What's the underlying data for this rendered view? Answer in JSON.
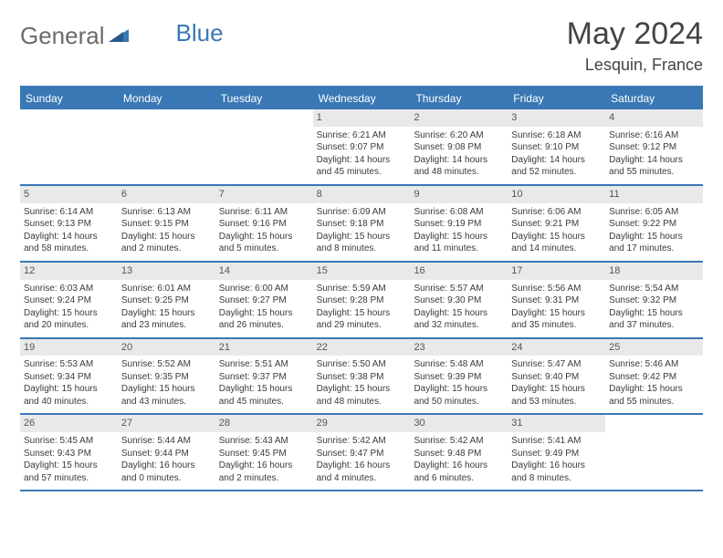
{
  "brand": {
    "part1": "General",
    "part2": "Blue"
  },
  "title": "May 2024",
  "location": "Lesquin, France",
  "colors": {
    "accent": "#3a78b5",
    "header_text": "#ffffff",
    "daynum_bg": "#e9e9e9",
    "text": "#333333",
    "brand_gray": "#6b6b6b"
  },
  "dow": [
    "Sunday",
    "Monday",
    "Tuesday",
    "Wednesday",
    "Thursday",
    "Friday",
    "Saturday"
  ],
  "weeks": [
    [
      null,
      null,
      null,
      {
        "n": "1",
        "sr": "Sunrise: 6:21 AM",
        "ss": "Sunset: 9:07 PM",
        "d1": "Daylight: 14 hours",
        "d2": "and 45 minutes."
      },
      {
        "n": "2",
        "sr": "Sunrise: 6:20 AM",
        "ss": "Sunset: 9:08 PM",
        "d1": "Daylight: 14 hours",
        "d2": "and 48 minutes."
      },
      {
        "n": "3",
        "sr": "Sunrise: 6:18 AM",
        "ss": "Sunset: 9:10 PM",
        "d1": "Daylight: 14 hours",
        "d2": "and 52 minutes."
      },
      {
        "n": "4",
        "sr": "Sunrise: 6:16 AM",
        "ss": "Sunset: 9:12 PM",
        "d1": "Daylight: 14 hours",
        "d2": "and 55 minutes."
      }
    ],
    [
      {
        "n": "5",
        "sr": "Sunrise: 6:14 AM",
        "ss": "Sunset: 9:13 PM",
        "d1": "Daylight: 14 hours",
        "d2": "and 58 minutes."
      },
      {
        "n": "6",
        "sr": "Sunrise: 6:13 AM",
        "ss": "Sunset: 9:15 PM",
        "d1": "Daylight: 15 hours",
        "d2": "and 2 minutes."
      },
      {
        "n": "7",
        "sr": "Sunrise: 6:11 AM",
        "ss": "Sunset: 9:16 PM",
        "d1": "Daylight: 15 hours",
        "d2": "and 5 minutes."
      },
      {
        "n": "8",
        "sr": "Sunrise: 6:09 AM",
        "ss": "Sunset: 9:18 PM",
        "d1": "Daylight: 15 hours",
        "d2": "and 8 minutes."
      },
      {
        "n": "9",
        "sr": "Sunrise: 6:08 AM",
        "ss": "Sunset: 9:19 PM",
        "d1": "Daylight: 15 hours",
        "d2": "and 11 minutes."
      },
      {
        "n": "10",
        "sr": "Sunrise: 6:06 AM",
        "ss": "Sunset: 9:21 PM",
        "d1": "Daylight: 15 hours",
        "d2": "and 14 minutes."
      },
      {
        "n": "11",
        "sr": "Sunrise: 6:05 AM",
        "ss": "Sunset: 9:22 PM",
        "d1": "Daylight: 15 hours",
        "d2": "and 17 minutes."
      }
    ],
    [
      {
        "n": "12",
        "sr": "Sunrise: 6:03 AM",
        "ss": "Sunset: 9:24 PM",
        "d1": "Daylight: 15 hours",
        "d2": "and 20 minutes."
      },
      {
        "n": "13",
        "sr": "Sunrise: 6:01 AM",
        "ss": "Sunset: 9:25 PM",
        "d1": "Daylight: 15 hours",
        "d2": "and 23 minutes."
      },
      {
        "n": "14",
        "sr": "Sunrise: 6:00 AM",
        "ss": "Sunset: 9:27 PM",
        "d1": "Daylight: 15 hours",
        "d2": "and 26 minutes."
      },
      {
        "n": "15",
        "sr": "Sunrise: 5:59 AM",
        "ss": "Sunset: 9:28 PM",
        "d1": "Daylight: 15 hours",
        "d2": "and 29 minutes."
      },
      {
        "n": "16",
        "sr": "Sunrise: 5:57 AM",
        "ss": "Sunset: 9:30 PM",
        "d1": "Daylight: 15 hours",
        "d2": "and 32 minutes."
      },
      {
        "n": "17",
        "sr": "Sunrise: 5:56 AM",
        "ss": "Sunset: 9:31 PM",
        "d1": "Daylight: 15 hours",
        "d2": "and 35 minutes."
      },
      {
        "n": "18",
        "sr": "Sunrise: 5:54 AM",
        "ss": "Sunset: 9:32 PM",
        "d1": "Daylight: 15 hours",
        "d2": "and 37 minutes."
      }
    ],
    [
      {
        "n": "19",
        "sr": "Sunrise: 5:53 AM",
        "ss": "Sunset: 9:34 PM",
        "d1": "Daylight: 15 hours",
        "d2": "and 40 minutes."
      },
      {
        "n": "20",
        "sr": "Sunrise: 5:52 AM",
        "ss": "Sunset: 9:35 PM",
        "d1": "Daylight: 15 hours",
        "d2": "and 43 minutes."
      },
      {
        "n": "21",
        "sr": "Sunrise: 5:51 AM",
        "ss": "Sunset: 9:37 PM",
        "d1": "Daylight: 15 hours",
        "d2": "and 45 minutes."
      },
      {
        "n": "22",
        "sr": "Sunrise: 5:50 AM",
        "ss": "Sunset: 9:38 PM",
        "d1": "Daylight: 15 hours",
        "d2": "and 48 minutes."
      },
      {
        "n": "23",
        "sr": "Sunrise: 5:48 AM",
        "ss": "Sunset: 9:39 PM",
        "d1": "Daylight: 15 hours",
        "d2": "and 50 minutes."
      },
      {
        "n": "24",
        "sr": "Sunrise: 5:47 AM",
        "ss": "Sunset: 9:40 PM",
        "d1": "Daylight: 15 hours",
        "d2": "and 53 minutes."
      },
      {
        "n": "25",
        "sr": "Sunrise: 5:46 AM",
        "ss": "Sunset: 9:42 PM",
        "d1": "Daylight: 15 hours",
        "d2": "and 55 minutes."
      }
    ],
    [
      {
        "n": "26",
        "sr": "Sunrise: 5:45 AM",
        "ss": "Sunset: 9:43 PM",
        "d1": "Daylight: 15 hours",
        "d2": "and 57 minutes."
      },
      {
        "n": "27",
        "sr": "Sunrise: 5:44 AM",
        "ss": "Sunset: 9:44 PM",
        "d1": "Daylight: 16 hours",
        "d2": "and 0 minutes."
      },
      {
        "n": "28",
        "sr": "Sunrise: 5:43 AM",
        "ss": "Sunset: 9:45 PM",
        "d1": "Daylight: 16 hours",
        "d2": "and 2 minutes."
      },
      {
        "n": "29",
        "sr": "Sunrise: 5:42 AM",
        "ss": "Sunset: 9:47 PM",
        "d1": "Daylight: 16 hours",
        "d2": "and 4 minutes."
      },
      {
        "n": "30",
        "sr": "Sunrise: 5:42 AM",
        "ss": "Sunset: 9:48 PM",
        "d1": "Daylight: 16 hours",
        "d2": "and 6 minutes."
      },
      {
        "n": "31",
        "sr": "Sunrise: 5:41 AM",
        "ss": "Sunset: 9:49 PM",
        "d1": "Daylight: 16 hours",
        "d2": "and 8 minutes."
      },
      null
    ]
  ]
}
